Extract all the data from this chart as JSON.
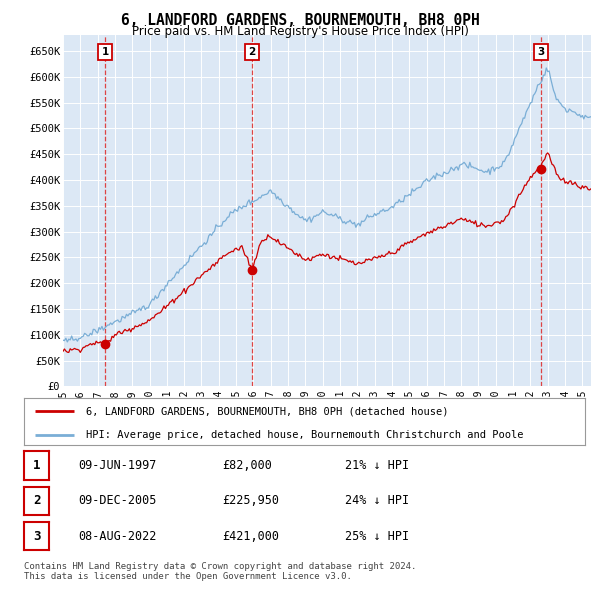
{
  "title": "6, LANDFORD GARDENS, BOURNEMOUTH, BH8 0PH",
  "subtitle": "Price paid vs. HM Land Registry's House Price Index (HPI)",
  "ylabel_ticks": [
    "£0",
    "£50K",
    "£100K",
    "£150K",
    "£200K",
    "£250K",
    "£300K",
    "£350K",
    "£400K",
    "£450K",
    "£500K",
    "£550K",
    "£600K",
    "£650K"
  ],
  "ytick_values": [
    0,
    50000,
    100000,
    150000,
    200000,
    250000,
    300000,
    350000,
    400000,
    450000,
    500000,
    550000,
    600000,
    650000
  ],
  "ylim": [
    0,
    680000
  ],
  "xlim_start": 1995.0,
  "xlim_end": 2025.5,
  "sale_points": [
    {
      "year": 1997.44,
      "price": 82000,
      "label": "1",
      "date": "09-JUN-1997",
      "price_str": "£82,000",
      "hpi_pct": "21% ↓ HPI"
    },
    {
      "year": 2005.93,
      "price": 225950,
      "label": "2",
      "date": "09-DEC-2005",
      "price_str": "£225,950",
      "hpi_pct": "24% ↓ HPI"
    },
    {
      "year": 2022.6,
      "price": 421000,
      "label": "3",
      "date": "08-AUG-2022",
      "price_str": "£421,000",
      "hpi_pct": "25% ↓ HPI"
    }
  ],
  "plot_bg_color": "#dce8f5",
  "grid_color": "#ffffff",
  "red_line_color": "#cc0000",
  "blue_line_color": "#7aaed6",
  "dashed_line_color": "#dd4444",
  "legend_label_red": "6, LANDFORD GARDENS, BOURNEMOUTH, BH8 0PH (detached house)",
  "legend_label_blue": "HPI: Average price, detached house, Bournemouth Christchurch and Poole",
  "footnote": "Contains HM Land Registry data © Crown copyright and database right 2024.\nThis data is licensed under the Open Government Licence v3.0.",
  "xtick_years": [
    1995,
    1996,
    1997,
    1998,
    1999,
    2000,
    2001,
    2002,
    2003,
    2004,
    2005,
    2006,
    2007,
    2008,
    2009,
    2010,
    2011,
    2012,
    2013,
    2014,
    2015,
    2016,
    2017,
    2018,
    2019,
    2020,
    2021,
    2022,
    2023,
    2024,
    2025
  ]
}
